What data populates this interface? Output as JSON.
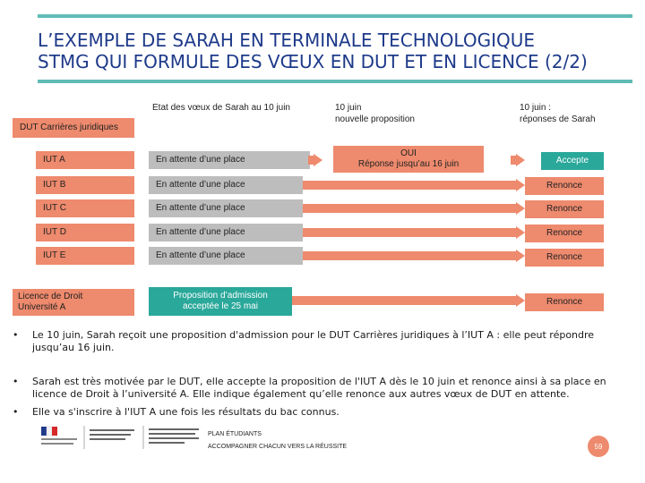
{
  "title": {
    "line1": "L’EXEMPLE DE SARAH EN TERMINALE TECHNOLOGIQUE",
    "line2": "STMG QUI FORMULE DES VŒUX EN DUT ET EN LICENCE (2/2)"
  },
  "headers": {
    "etat": "Etat des vœux de Sarah au 10 juin",
    "nouvelle_l1": "10 juin",
    "nouvelle_l2": "nouvelle proposition",
    "reponses_l1": "10 juin :",
    "reponses_l2": "réponses de Sarah"
  },
  "group_label": "DUT Carrières juridiques",
  "rows": [
    {
      "voeu": "IUT A",
      "etat": "En attente d’une place",
      "proposition_l1": "OUI",
      "proposition_l2": "Réponse jusqu’au 16 juin",
      "reponse": "Accepte"
    },
    {
      "voeu": "IUT B",
      "etat": "En attente d’une place",
      "reponse": "Renonce"
    },
    {
      "voeu": "IUT C",
      "etat": "En attente d’une place",
      "reponse": "Renonce"
    },
    {
      "voeu": "IUT D",
      "etat": "En attente d’une place",
      "reponse": "Renonce"
    },
    {
      "voeu": "IUT E",
      "etat": "En attente d’une place",
      "reponse": "Renonce"
    }
  ],
  "licence_row": {
    "voeu_l1": "Licence de Droit",
    "voeu_l2": "Université A",
    "etat_l1": "Proposition d’admission",
    "etat_l2": "acceptée le 25 mai",
    "reponse": "Renonce"
  },
  "bullets": [
    {
      "marker": "•",
      "line1": "Le 10 juin, Sarah reçoit une proposition d'admission pour le DUT Carrières juridiques à l’IUT A : elle peut répondre",
      "line2": "jusqu’au 16 juin."
    },
    {
      "marker": "•",
      "line1": "Sarah est très motivée par le DUT, elle accepte la proposition de l'IUT A dès le 10 juin et renonce ainsi à sa place en",
      "line2": "licence de Droit à l’université A. Elle indique également qu’elle renonce aux autres vœux de DUT en attente."
    },
    {
      "marker": "•",
      "line1": "Elle va s'inscrire à l'IUT A une fois les résultats du bac connus."
    }
  ],
  "footer": {
    "line1": "PLAN ÉTUDIANTS",
    "line2": "ACCOMPAGNER CHACUN VERS LA RÉUSSITE",
    "page": "59"
  },
  "colors": {
    "teal": "#2aa89a",
    "salmon": "#ee8a6d",
    "grey": "#bdbdbd",
    "title": "#1e3a8a",
    "rule": "#5fbcb6"
  }
}
